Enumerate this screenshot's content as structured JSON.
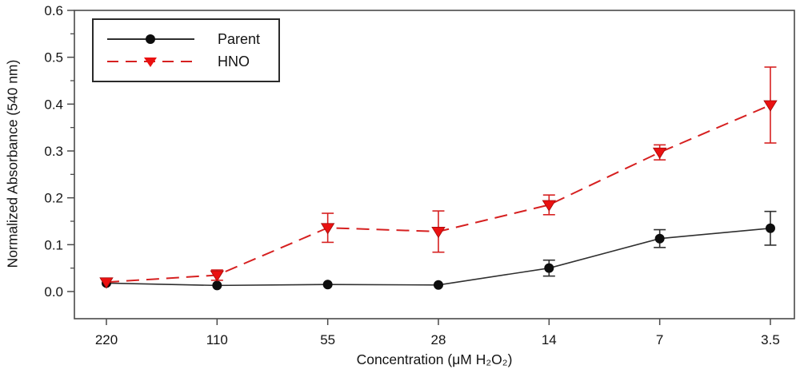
{
  "chart_data": {
    "type": "line",
    "title": "",
    "xlabel": "Concentration (μM H₂O₂)",
    "ylabel": "Normalized Absorbance (540 nm)",
    "categories": [
      "220",
      "110",
      "55",
      "28",
      "14",
      "7",
      "3.5"
    ],
    "y_tick_labels": [
      "0.0",
      "0.1",
      "0.2",
      "0.3",
      "0.4",
      "0.5",
      "0.6"
    ],
    "y_major_ticks": [
      0.0,
      0.1,
      0.2,
      0.3,
      0.4,
      0.5,
      0.6
    ],
    "y_minor_ticks": [
      0.05,
      0.15,
      0.25,
      0.35,
      0.45,
      0.55
    ],
    "ylim": [
      -0.058,
      0.6
    ],
    "grid": false,
    "legend_position": "top-left",
    "frame_color": "#4a4a4a",
    "series": [
      {
        "name": "Parent",
        "marker": "circle",
        "line_style": "solid",
        "color": "#2f2f2f",
        "marker_color": "#0d0d0d",
        "values": [
          0.018,
          0.013,
          0.015,
          0.014,
          0.05,
          0.113,
          0.135
        ],
        "errors": [
          0,
          0,
          0,
          0,
          0.017,
          0.019,
          0.036
        ]
      },
      {
        "name": "HNO",
        "marker": "triangle-down",
        "line_style": "dashed",
        "color": "#d62020",
        "marker_color": "#ea1111",
        "values": [
          0.02,
          0.035,
          0.136,
          0.128,
          0.185,
          0.297,
          0.398
        ],
        "errors": [
          0,
          0.011,
          0.031,
          0.044,
          0.021,
          0.016,
          0.081
        ]
      }
    ]
  }
}
